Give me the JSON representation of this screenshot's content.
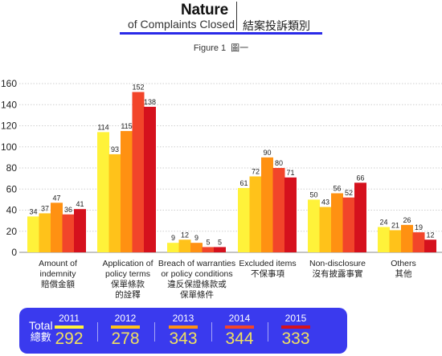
{
  "header": {
    "title_en": "Nature",
    "subtitle_en": "of Complaints Closed",
    "title_zh": "結案投訴類別",
    "figure_label_en": "Figure 1",
    "figure_label_zh": "圖一"
  },
  "chart_data": {
    "type": "bar",
    "categories": [
      {
        "en": "Amount of indemnity",
        "zh": "賠償金額"
      },
      {
        "en": "Application of policy terms",
        "zh": "保單條款的詮釋"
      },
      {
        "en": "Breach of warranties or policy conditions",
        "zh": "違反保證條款或保單條件"
      },
      {
        "en": "Excluded items",
        "zh": "不保事項"
      },
      {
        "en": "Non-disclosure",
        "zh": "沒有披露事實"
      },
      {
        "en": "Others",
        "zh": "其他"
      }
    ],
    "series": [
      {
        "name": "2011",
        "color": "#fff23a",
        "values": [
          34,
          114,
          9,
          61,
          50,
          24
        ]
      },
      {
        "name": "2012",
        "color": "#ffc21a",
        "values": [
          37,
          93,
          12,
          72,
          43,
          21
        ]
      },
      {
        "name": "2013",
        "color": "#ff9112",
        "values": [
          47,
          115,
          9,
          90,
          56,
          26
        ]
      },
      {
        "name": "2014",
        "color": "#f2452a",
        "values": [
          36,
          152,
          5,
          80,
          52,
          19
        ]
      },
      {
        "name": "2015",
        "color": "#d5111d",
        "values": [
          41,
          138,
          5,
          71,
          66,
          12
        ]
      }
    ],
    "y_ticks": [
      0,
      20,
      40,
      60,
      80,
      100,
      120,
      140,
      160
    ],
    "ylim": [
      0,
      165
    ],
    "grid": true
  },
  "totals": {
    "label_en": "Total",
    "label_zh": "總數",
    "items": [
      {
        "year": "2011",
        "value": "292",
        "color": "#fff23a"
      },
      {
        "year": "2012",
        "value": "278",
        "color": "#ffc21a"
      },
      {
        "year": "2013",
        "value": "343",
        "color": "#ff9112"
      },
      {
        "year": "2014",
        "value": "344",
        "color": "#f2452a"
      },
      {
        "year": "2015",
        "value": "333",
        "color": "#d5111d"
      }
    ]
  }
}
